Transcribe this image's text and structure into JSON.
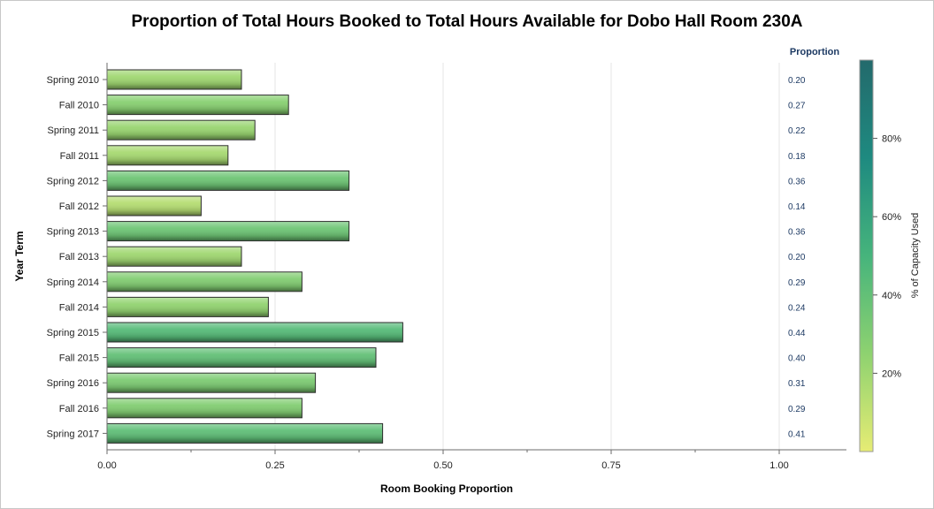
{
  "chart_data": {
    "type": "bar",
    "orientation": "horizontal",
    "title": "Proportion of Total Hours Booked to Total Hours Available for Dobo Hall Room 230A",
    "xlabel": "Room Booking Proportion",
    "ylabel": "Year Term",
    "xlim": [
      0,
      1.1
    ],
    "xticks": [
      "0.00",
      "0.25",
      "0.50",
      "0.75",
      "1.00"
    ],
    "grid": true,
    "categories": [
      "Spring 2010",
      "Fall 2010",
      "Spring 2011",
      "Fall 2011",
      "Spring 2012",
      "Fall 2012",
      "Spring 2013",
      "Fall 2013",
      "Spring 2014",
      "Fall 2014",
      "Spring 2015",
      "Fall 2015",
      "Spring 2016",
      "Fall 2016",
      "Spring 2017"
    ],
    "values": [
      0.2,
      0.27,
      0.22,
      0.18,
      0.36,
      0.14,
      0.36,
      0.2,
      0.29,
      0.24,
      0.44,
      0.4,
      0.31,
      0.29,
      0.41
    ],
    "value_labels": [
      "0.20",
      "0.27",
      "0.22",
      "0.18",
      "0.36",
      "0.14",
      "0.36",
      "0.20",
      "0.29",
      "0.24",
      "0.44",
      "0.40",
      "0.31",
      "0.29",
      "0.41"
    ],
    "value_column_header": "Proportion",
    "colorbar": {
      "label": "% of Capacity Used",
      "range": [
        0,
        100
      ],
      "ticks": [
        "20%",
        "40%",
        "60%",
        "80%"
      ],
      "tick_values": [
        20,
        40,
        60,
        80
      ],
      "colors": [
        "#e6ec74",
        "#8ed270",
        "#46b47c",
        "#1e8a80",
        "#236a6c"
      ]
    },
    "colors": {
      "axis": "#6b6b6b",
      "grid": "#e6e6e6",
      "bar_outline": "#2b2b2b",
      "value_text": "#1d3a63"
    }
  }
}
